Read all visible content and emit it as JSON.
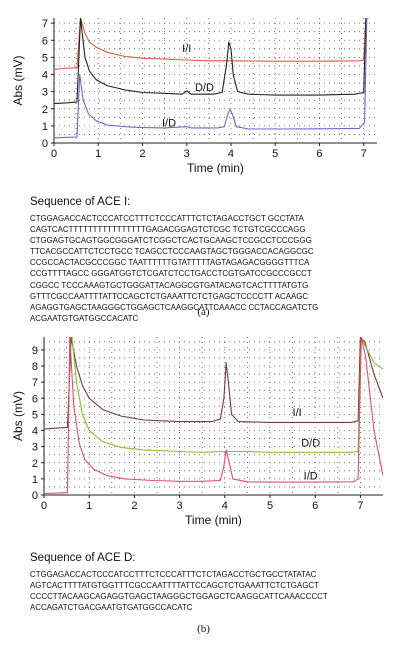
{
  "chart_data": [
    {
      "type": "line",
      "xlabel": "Time (min)",
      "ylabel": "Abs (mV)",
      "xlim": [
        0,
        7.3
      ],
      "ylim": [
        0,
        7.3
      ],
      "x_ticks": [
        "0",
        "1",
        "2",
        "3",
        "4",
        "5",
        "6",
        "7"
      ],
      "y_ticks": [
        "0",
        "1",
        "2",
        "3",
        "4",
        "5",
        "6",
        "7"
      ],
      "grid": "dotted",
      "annotations": [
        "I/I",
        "D/D",
        "I/D"
      ],
      "series": [
        {
          "name": "I/I",
          "color": "#e0584a",
          "points": [
            [
              0,
              4.3
            ],
            [
              0.2,
              4.35
            ],
            [
              0.52,
              4.4
            ],
            [
              0.6,
              7.3
            ],
            [
              0.7,
              6.4
            ],
            [
              0.8,
              5.9
            ],
            [
              0.95,
              5.6
            ],
            [
              1.2,
              5.3
            ],
            [
              1.6,
              5.05
            ],
            [
              2.0,
              4.95
            ],
            [
              2.5,
              4.9
            ],
            [
              3.0,
              4.85
            ],
            [
              3.5,
              4.8
            ],
            [
              4.0,
              4.8
            ],
            [
              5.0,
              4.78
            ],
            [
              6.0,
              4.78
            ],
            [
              6.9,
              4.8
            ],
            [
              7.0,
              4.85
            ],
            [
              7.05,
              7.3
            ],
            [
              7.12,
              7.3
            ]
          ]
        },
        {
          "name": "D/D",
          "color": "#222222",
          "points": [
            [
              0,
              2.3
            ],
            [
              0.3,
              2.35
            ],
            [
              0.52,
              2.4
            ],
            [
              0.6,
              7.3
            ],
            [
              0.7,
              5.0
            ],
            [
              0.8,
              4.2
            ],
            [
              0.95,
              3.7
            ],
            [
              1.2,
              3.35
            ],
            [
              1.6,
              3.1
            ],
            [
              2.0,
              2.95
            ],
            [
              2.5,
              2.9
            ],
            [
              2.9,
              2.85
            ],
            [
              3.0,
              3.05
            ],
            [
              3.1,
              2.85
            ],
            [
              3.6,
              2.85
            ],
            [
              3.8,
              2.95
            ],
            [
              3.9,
              4.6
            ],
            [
              3.95,
              5.9
            ],
            [
              4.0,
              5.5
            ],
            [
              4.05,
              4.0
            ],
            [
              4.15,
              3.0
            ],
            [
              4.4,
              2.85
            ],
            [
              5.0,
              2.8
            ],
            [
              6.0,
              2.8
            ],
            [
              6.8,
              2.85
            ],
            [
              7.0,
              2.95
            ],
            [
              7.05,
              7.3
            ],
            [
              7.12,
              7.3
            ]
          ]
        },
        {
          "name": "I/D",
          "color": "#6a6ac8",
          "points": [
            [
              0,
              0.3
            ],
            [
              0.3,
              0.33
            ],
            [
              0.52,
              0.35
            ],
            [
              0.58,
              4.0
            ],
            [
              0.66,
              2.5
            ],
            [
              0.78,
              1.7
            ],
            [
              0.95,
              1.3
            ],
            [
              1.2,
              1.05
            ],
            [
              1.6,
              0.95
            ],
            [
              2.0,
              0.9
            ],
            [
              2.5,
              0.88
            ],
            [
              3.0,
              0.95
            ],
            [
              3.1,
              0.88
            ],
            [
              3.7,
              0.88
            ],
            [
              3.85,
              0.95
            ],
            [
              3.93,
              1.7
            ],
            [
              3.98,
              1.95
            ],
            [
              4.03,
              1.7
            ],
            [
              4.12,
              0.95
            ],
            [
              4.4,
              0.82
            ],
            [
              5.0,
              0.82
            ],
            [
              6.0,
              0.83
            ],
            [
              6.9,
              0.85
            ],
            [
              7.02,
              1.2
            ],
            [
              7.07,
              7.3
            ],
            [
              7.12,
              7.3
            ]
          ]
        }
      ]
    },
    {
      "type": "line",
      "xlabel": "Time (min)",
      "ylabel": "Abs (mV)",
      "xlim": [
        0,
        7.5
      ],
      "ylim": [
        0,
        9.8
      ],
      "x_ticks": [
        "0",
        "1",
        "2",
        "3",
        "4",
        "5",
        "6",
        "7"
      ],
      "y_ticks": [
        "0",
        "1",
        "2",
        "3",
        "4",
        "5",
        "6",
        "7",
        "8",
        "9"
      ],
      "grid": "dotted",
      "annotations": [
        "I/I",
        "D/D",
        "I/D"
      ],
      "series": [
        {
          "name": "I/I",
          "color": "#7a3a3a",
          "points": [
            [
              0,
              4.1
            ],
            [
              0.3,
              4.15
            ],
            [
              0.52,
              4.2
            ],
            [
              0.6,
              9.8
            ],
            [
              0.72,
              8.0
            ],
            [
              0.85,
              6.8
            ],
            [
              1.0,
              6.0
            ],
            [
              1.3,
              5.3
            ],
            [
              1.7,
              4.9
            ],
            [
              2.2,
              4.65
            ],
            [
              3.0,
              4.55
            ],
            [
              3.7,
              4.55
            ],
            [
              3.9,
              4.7
            ],
            [
              3.98,
              6.0
            ],
            [
              4.03,
              8.2
            ],
            [
              4.08,
              7.0
            ],
            [
              4.15,
              5.0
            ],
            [
              4.3,
              4.55
            ],
            [
              5.0,
              4.5
            ],
            [
              6.0,
              4.5
            ],
            [
              6.8,
              4.5
            ],
            [
              6.95,
              4.6
            ],
            [
              7.0,
              9.8
            ],
            [
              7.1,
              9.5
            ],
            [
              7.3,
              7.5
            ],
            [
              7.5,
              6.0
            ]
          ]
        },
        {
          "name": "D/D",
          "color": "#8abf2c",
          "points": [
            [
              0.62,
              9.8
            ],
            [
              0.72,
              7.0
            ],
            [
              0.85,
              5.0
            ],
            [
              1.0,
              4.0
            ],
            [
              1.3,
              3.3
            ],
            [
              1.7,
              2.95
            ],
            [
              2.2,
              2.8
            ],
            [
              3.0,
              2.7
            ],
            [
              3.5,
              2.65
            ],
            [
              4.0,
              2.7
            ],
            [
              4.5,
              2.7
            ],
            [
              5.0,
              2.65
            ],
            [
              6.0,
              2.65
            ],
            [
              6.8,
              2.65
            ],
            [
              6.95,
              2.7
            ],
            [
              7.02,
              9.8
            ],
            [
              7.1,
              9.3
            ],
            [
              7.3,
              8.2
            ],
            [
              7.5,
              7.8
            ]
          ]
        },
        {
          "name": "I/D",
          "color": "#e0506a",
          "points": [
            [
              0,
              0.1
            ],
            [
              0.3,
              0.12
            ],
            [
              0.52,
              0.15
            ],
            [
              0.57,
              9.8
            ],
            [
              0.66,
              5.5
            ],
            [
              0.78,
              3.2
            ],
            [
              0.9,
              2.2
            ],
            [
              1.1,
              1.6
            ],
            [
              1.4,
              1.2
            ],
            [
              1.8,
              1.0
            ],
            [
              2.4,
              0.9
            ],
            [
              3.0,
              0.85
            ],
            [
              3.5,
              0.85
            ],
            [
              3.9,
              0.9
            ],
            [
              3.98,
              1.8
            ],
            [
              4.03,
              2.8
            ],
            [
              4.08,
              2.2
            ],
            [
              4.18,
              1.0
            ],
            [
              4.5,
              0.82
            ],
            [
              5.0,
              0.8
            ],
            [
              6.0,
              0.8
            ],
            [
              6.85,
              0.82
            ],
            [
              6.95,
              1.0
            ],
            [
              7.02,
              9.8
            ],
            [
              7.12,
              8.5
            ],
            [
              7.3,
              4.0
            ],
            [
              7.5,
              1.2
            ]
          ]
        }
      ]
    }
  ],
  "panel_a": {
    "seq_title": "Sequence of ACE I:",
    "seq_lines": [
      "CTGGAGACCACTCCCATCCTTTCTCCCATTTCTCTAGACCTGCT GCCTATA",
      "CAGTCACTTTTTTTTTTTTTTTTGAGACGGAGTCTCGC TCTGTCGCCCAGG",
      "CTGGAGTGCAGTGGCGGGATCTCGGCTCACTGCAAGCTCCGCCTCCCGGG",
      "TTCACGCCATTCTCCTGCC TCAGCCTCCCAAGTAGCTGGGACCACAGGCGC",
      "CCGCCACTACGCCCGGC TAATTTTTTGTATTTTTAGTAGAGACGGGGTTTCA",
      "CCGTTTTAGCC GGGATGGTCTCGATCTCCTGACCTCGTGATCCGCCCGCCT",
      "CGGCC TCCCAAAGTGCTGGGATTACAGGCGTGATACAGTCACTTTTATGTG",
      "GTTTCGCCAATTTTATTCCAGCTCTGAAATTCTCTGAGCTCCCCTT ACAAGC",
      "AGAGGTGAGCTAAGGGCTGGAGCTCAAGGCATTCAAACC CCTACCAGATCTG",
      "ACGAATGTGATGGCCACATC"
    ],
    "label": "(a)"
  },
  "panel_b": {
    "seq_title": "Sequence of ACE D:",
    "seq_lines": [
      "CTGGAGACCACTCCCATCCTTTCTCCCATTTCTCTAGACCTGCTGCCTATATAC",
      "AGTCACTTTTATGTGGTTTCGCCAATTTTATTCCAGCTCTGAAATTCTCTGAGCT",
      "CCCCTTACAAGCAGAGGTGAGCTAAGGGCTGGAGCTCAAGGCATTCAAACCCCT",
      "ACCAGATCTGACGAATGTGATGGCCACATC"
    ],
    "label": "(b)"
  }
}
